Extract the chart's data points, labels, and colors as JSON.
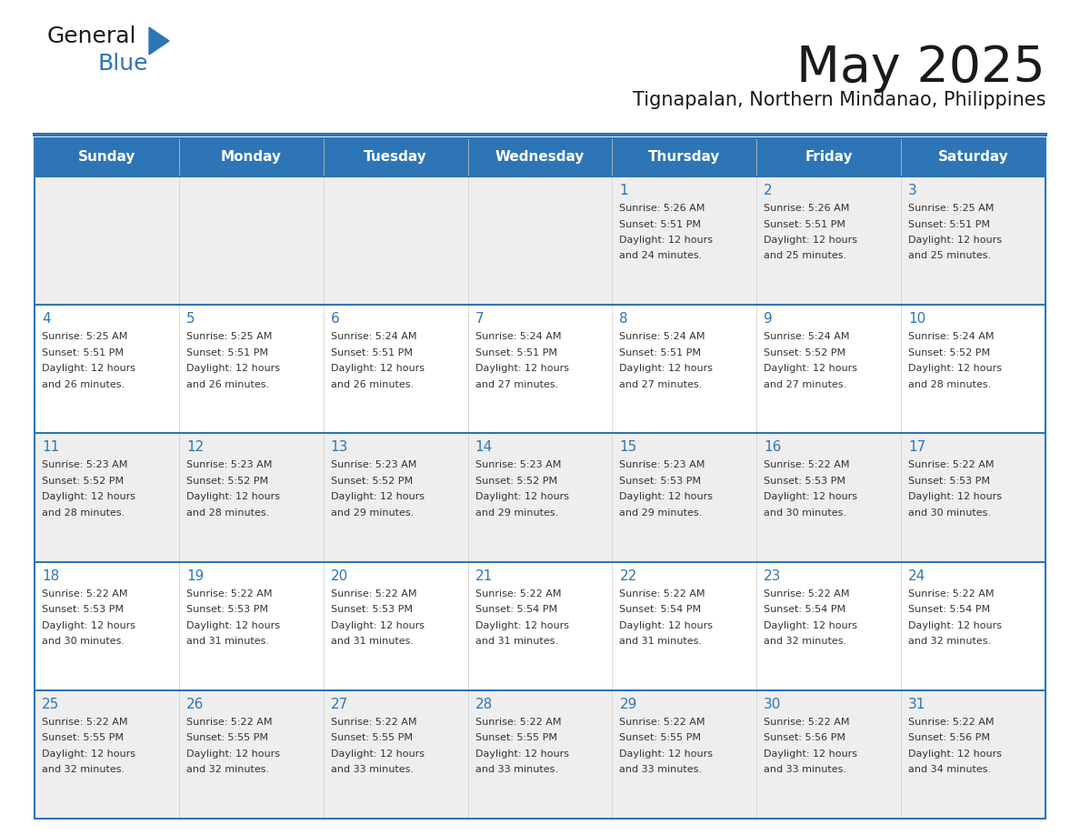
{
  "title": "May 2025",
  "subtitle": "Tignapalan, Northern Mindanao, Philippines",
  "header_bg_color": "#2e75b6",
  "header_text_color": "#ffffff",
  "day_names": [
    "Sunday",
    "Monday",
    "Tuesday",
    "Wednesday",
    "Thursday",
    "Friday",
    "Saturday"
  ],
  "row1_bg": "#eeeeee",
  "row2_bg": "#ffffff",
  "border_color": "#2e75b6",
  "text_color": "#333333",
  "num_color": "#2e75b6",
  "days": [
    {
      "day": 1,
      "col": 4,
      "row": 0,
      "sunrise": "5:26 AM",
      "sunset": "5:51 PM",
      "daylight_hours": 12,
      "daylight_minutes": 24
    },
    {
      "day": 2,
      "col": 5,
      "row": 0,
      "sunrise": "5:26 AM",
      "sunset": "5:51 PM",
      "daylight_hours": 12,
      "daylight_minutes": 25
    },
    {
      "day": 3,
      "col": 6,
      "row": 0,
      "sunrise": "5:25 AM",
      "sunset": "5:51 PM",
      "daylight_hours": 12,
      "daylight_minutes": 25
    },
    {
      "day": 4,
      "col": 0,
      "row": 1,
      "sunrise": "5:25 AM",
      "sunset": "5:51 PM",
      "daylight_hours": 12,
      "daylight_minutes": 26
    },
    {
      "day": 5,
      "col": 1,
      "row": 1,
      "sunrise": "5:25 AM",
      "sunset": "5:51 PM",
      "daylight_hours": 12,
      "daylight_minutes": 26
    },
    {
      "day": 6,
      "col": 2,
      "row": 1,
      "sunrise": "5:24 AM",
      "sunset": "5:51 PM",
      "daylight_hours": 12,
      "daylight_minutes": 26
    },
    {
      "day": 7,
      "col": 3,
      "row": 1,
      "sunrise": "5:24 AM",
      "sunset": "5:51 PM",
      "daylight_hours": 12,
      "daylight_minutes": 27
    },
    {
      "day": 8,
      "col": 4,
      "row": 1,
      "sunrise": "5:24 AM",
      "sunset": "5:51 PM",
      "daylight_hours": 12,
      "daylight_minutes": 27
    },
    {
      "day": 9,
      "col": 5,
      "row": 1,
      "sunrise": "5:24 AM",
      "sunset": "5:52 PM",
      "daylight_hours": 12,
      "daylight_minutes": 27
    },
    {
      "day": 10,
      "col": 6,
      "row": 1,
      "sunrise": "5:24 AM",
      "sunset": "5:52 PM",
      "daylight_hours": 12,
      "daylight_minutes": 28
    },
    {
      "day": 11,
      "col": 0,
      "row": 2,
      "sunrise": "5:23 AM",
      "sunset": "5:52 PM",
      "daylight_hours": 12,
      "daylight_minutes": 28
    },
    {
      "day": 12,
      "col": 1,
      "row": 2,
      "sunrise": "5:23 AM",
      "sunset": "5:52 PM",
      "daylight_hours": 12,
      "daylight_minutes": 28
    },
    {
      "day": 13,
      "col": 2,
      "row": 2,
      "sunrise": "5:23 AM",
      "sunset": "5:52 PM",
      "daylight_hours": 12,
      "daylight_minutes": 29
    },
    {
      "day": 14,
      "col": 3,
      "row": 2,
      "sunrise": "5:23 AM",
      "sunset": "5:52 PM",
      "daylight_hours": 12,
      "daylight_minutes": 29
    },
    {
      "day": 15,
      "col": 4,
      "row": 2,
      "sunrise": "5:23 AM",
      "sunset": "5:53 PM",
      "daylight_hours": 12,
      "daylight_minutes": 29
    },
    {
      "day": 16,
      "col": 5,
      "row": 2,
      "sunrise": "5:22 AM",
      "sunset": "5:53 PM",
      "daylight_hours": 12,
      "daylight_minutes": 30
    },
    {
      "day": 17,
      "col": 6,
      "row": 2,
      "sunrise": "5:22 AM",
      "sunset": "5:53 PM",
      "daylight_hours": 12,
      "daylight_minutes": 30
    },
    {
      "day": 18,
      "col": 0,
      "row": 3,
      "sunrise": "5:22 AM",
      "sunset": "5:53 PM",
      "daylight_hours": 12,
      "daylight_minutes": 30
    },
    {
      "day": 19,
      "col": 1,
      "row": 3,
      "sunrise": "5:22 AM",
      "sunset": "5:53 PM",
      "daylight_hours": 12,
      "daylight_minutes": 31
    },
    {
      "day": 20,
      "col": 2,
      "row": 3,
      "sunrise": "5:22 AM",
      "sunset": "5:53 PM",
      "daylight_hours": 12,
      "daylight_minutes": 31
    },
    {
      "day": 21,
      "col": 3,
      "row": 3,
      "sunrise": "5:22 AM",
      "sunset": "5:54 PM",
      "daylight_hours": 12,
      "daylight_minutes": 31
    },
    {
      "day": 22,
      "col": 4,
      "row": 3,
      "sunrise": "5:22 AM",
      "sunset": "5:54 PM",
      "daylight_hours": 12,
      "daylight_minutes": 31
    },
    {
      "day": 23,
      "col": 5,
      "row": 3,
      "sunrise": "5:22 AM",
      "sunset": "5:54 PM",
      "daylight_hours": 12,
      "daylight_minutes": 32
    },
    {
      "day": 24,
      "col": 6,
      "row": 3,
      "sunrise": "5:22 AM",
      "sunset": "5:54 PM",
      "daylight_hours": 12,
      "daylight_minutes": 32
    },
    {
      "day": 25,
      "col": 0,
      "row": 4,
      "sunrise": "5:22 AM",
      "sunset": "5:55 PM",
      "daylight_hours": 12,
      "daylight_minutes": 32
    },
    {
      "day": 26,
      "col": 1,
      "row": 4,
      "sunrise": "5:22 AM",
      "sunset": "5:55 PM",
      "daylight_hours": 12,
      "daylight_minutes": 32
    },
    {
      "day": 27,
      "col": 2,
      "row": 4,
      "sunrise": "5:22 AM",
      "sunset": "5:55 PM",
      "daylight_hours": 12,
      "daylight_minutes": 33
    },
    {
      "day": 28,
      "col": 3,
      "row": 4,
      "sunrise": "5:22 AM",
      "sunset": "5:55 PM",
      "daylight_hours": 12,
      "daylight_minutes": 33
    },
    {
      "day": 29,
      "col": 4,
      "row": 4,
      "sunrise": "5:22 AM",
      "sunset": "5:55 PM",
      "daylight_hours": 12,
      "daylight_minutes": 33
    },
    {
      "day": 30,
      "col": 5,
      "row": 4,
      "sunrise": "5:22 AM",
      "sunset": "5:56 PM",
      "daylight_hours": 12,
      "daylight_minutes": 33
    },
    {
      "day": 31,
      "col": 6,
      "row": 4,
      "sunrise": "5:22 AM",
      "sunset": "5:56 PM",
      "daylight_hours": 12,
      "daylight_minutes": 34
    }
  ],
  "logo_color_general": "#1a1a1a",
  "logo_color_blue": "#2e75b6",
  "logo_triangle_color": "#2e75b6",
  "title_fontsize": 40,
  "subtitle_fontsize": 15,
  "header_fontsize": 11,
  "day_num_fontsize": 11,
  "cell_text_fontsize": 8
}
